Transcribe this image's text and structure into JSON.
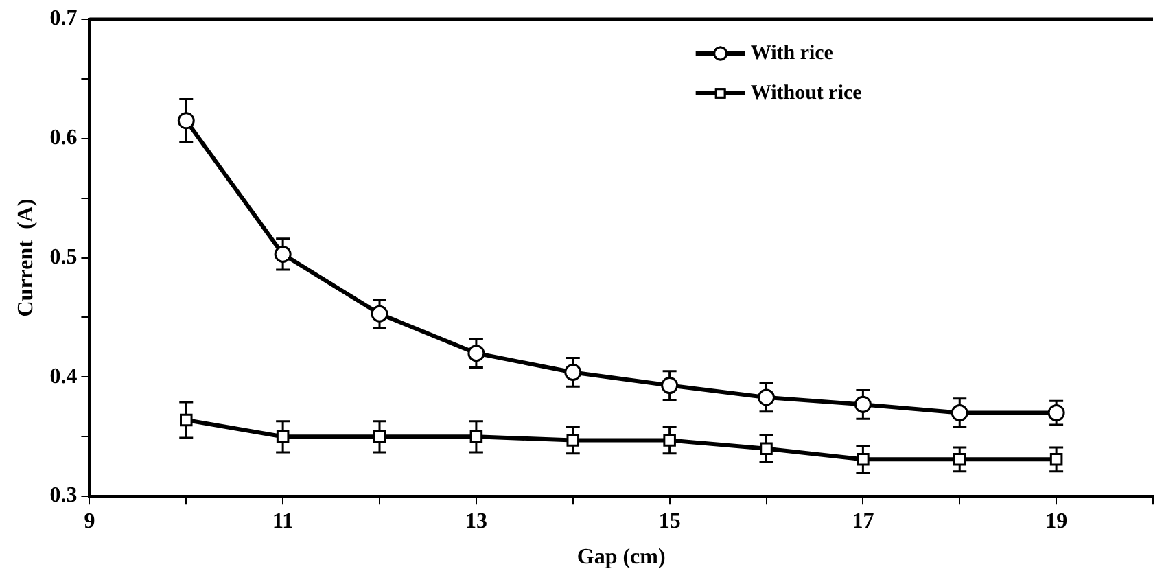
{
  "chart_data": {
    "type": "line",
    "xlabel": "Gap (cm)",
    "ylabel": "Current  (A)",
    "x": [
      10,
      11,
      12,
      13,
      14,
      15,
      16,
      17,
      18,
      19
    ],
    "series": [
      {
        "name": "With rice",
        "color": "#000000",
        "marker": "circle",
        "values": [
          0.615,
          0.503,
          0.453,
          0.42,
          0.404,
          0.393,
          0.383,
          0.377,
          0.37,
          0.37
        ],
        "errors": [
          0.018,
          0.013,
          0.012,
          0.012,
          0.012,
          0.012,
          0.012,
          0.012,
          0.012,
          0.01
        ]
      },
      {
        "name": "Without rice",
        "color": "#000000",
        "marker": "square",
        "values": [
          0.364,
          0.35,
          0.35,
          0.35,
          0.347,
          0.347,
          0.34,
          0.331,
          0.331,
          0.331
        ],
        "errors": [
          0.015,
          0.013,
          0.013,
          0.013,
          0.011,
          0.011,
          0.011,
          0.011,
          0.01,
          0.01
        ]
      }
    ],
    "xlim": [
      9,
      20
    ],
    "xticks": [
      9,
      {
        "value": 10,
        "label": null
      },
      11,
      {
        "value": 12,
        "label": null
      },
      13,
      {
        "value": 14,
        "label": null
      },
      15,
      {
        "value": 16,
        "label": null
      },
      17,
      {
        "value": 18,
        "label": null
      },
      19,
      {
        "value": 20,
        "label": null
      }
    ],
    "ylim": [
      0.3,
      0.7
    ],
    "yticks": [
      0.3,
      {
        "value": 0.35,
        "label": null
      },
      0.4,
      {
        "value": 0.45,
        "label": null
      },
      0.5,
      {
        "value": 0.55,
        "label": null
      },
      0.6,
      {
        "value": 0.65,
        "label": null
      },
      0.7
    ],
    "grid": false,
    "legend": "top right",
    "line_style": "solid"
  }
}
